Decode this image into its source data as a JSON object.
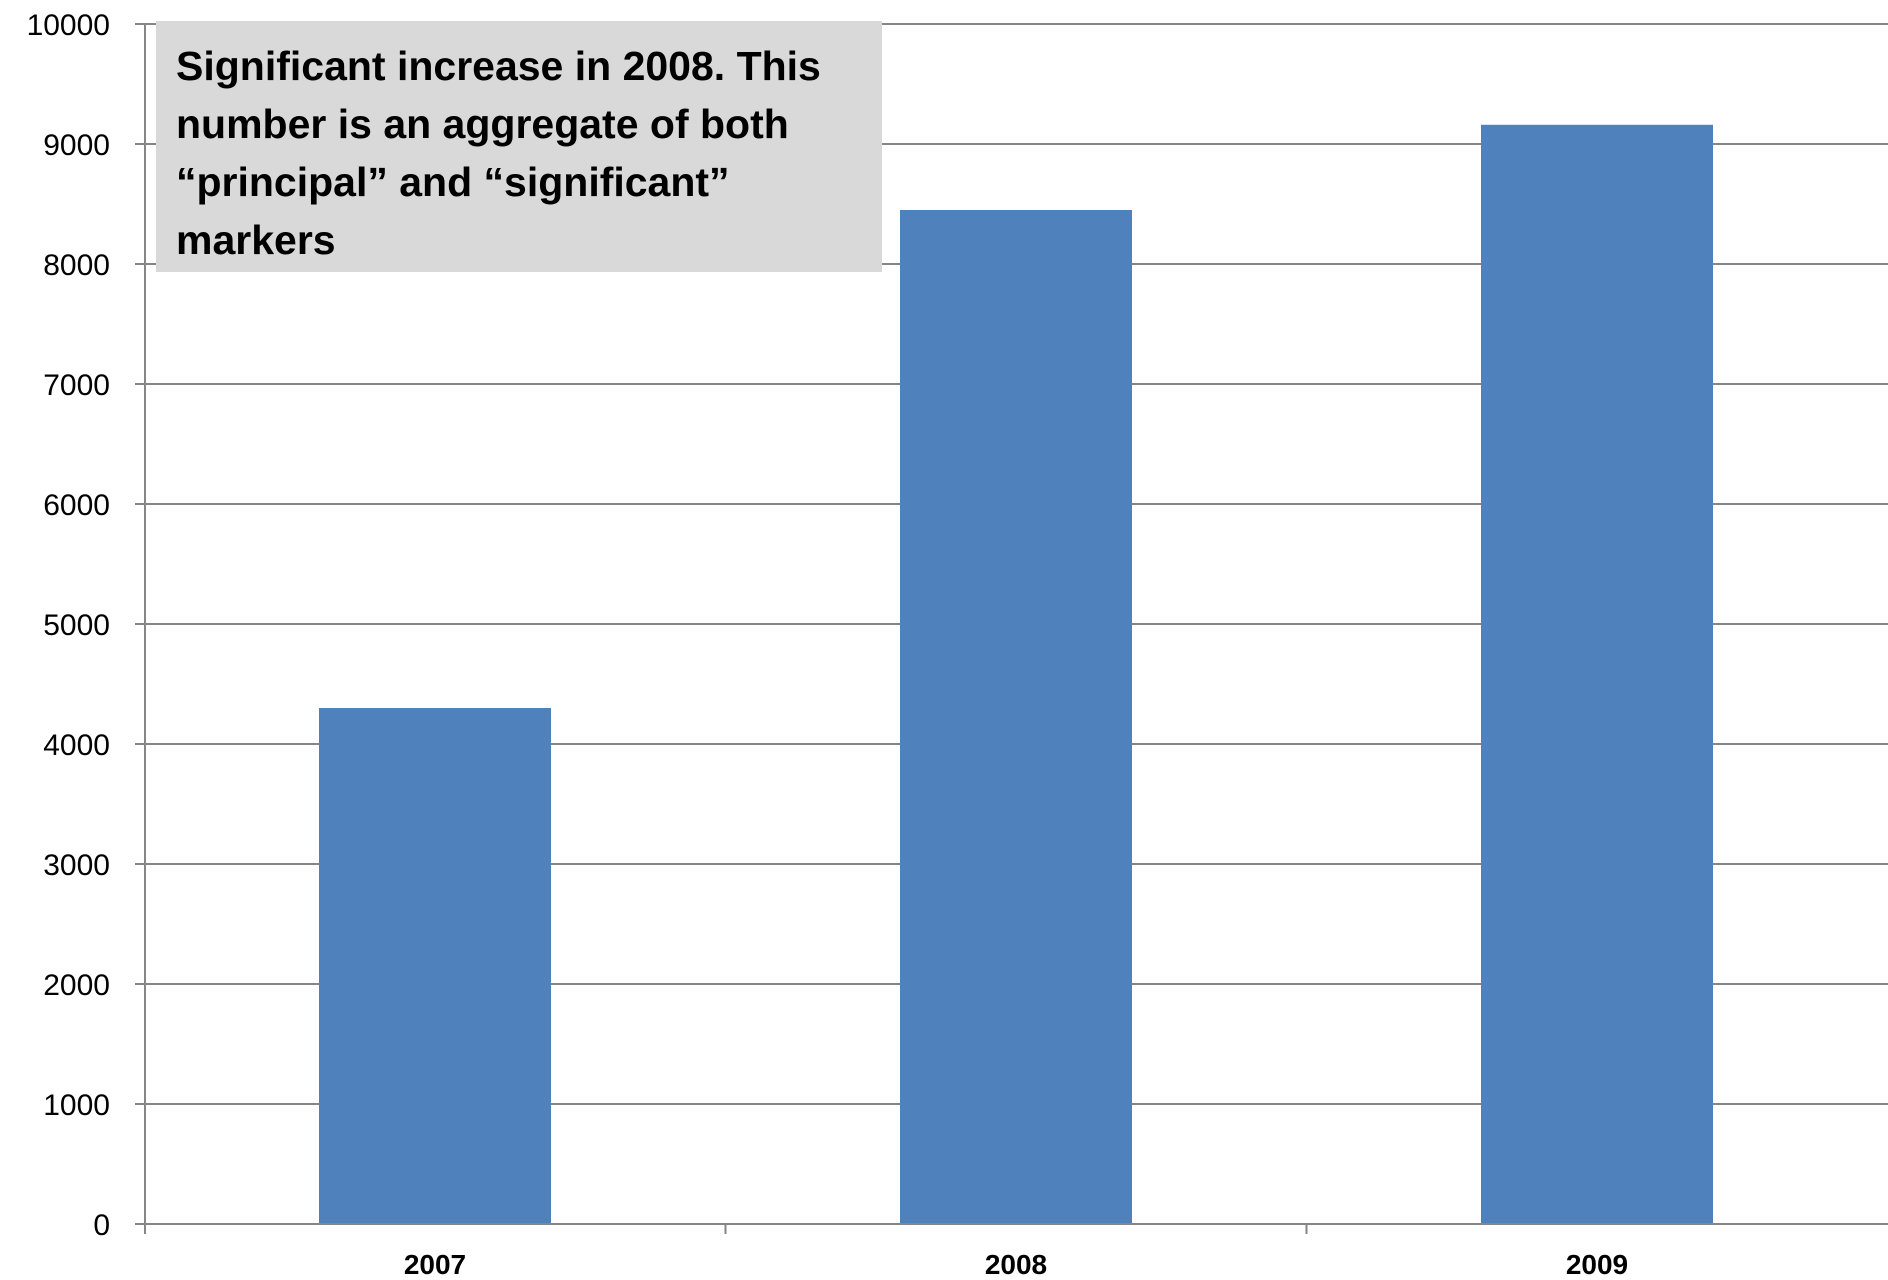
{
  "chart_data": {
    "type": "bar",
    "categories": [
      "2007",
      "2008",
      "2009"
    ],
    "values": [
      4300,
      8450,
      9160
    ],
    "ylim": [
      0,
      10000
    ],
    "yticks": [
      0,
      1000,
      2000,
      3000,
      4000,
      5000,
      6000,
      7000,
      8000,
      9000,
      10000
    ],
    "grid": true,
    "bar_color": "#4f81bd",
    "annotation": "Significant increase in 2008. This number is an aggregate of both “principal” and “significant” markers"
  }
}
